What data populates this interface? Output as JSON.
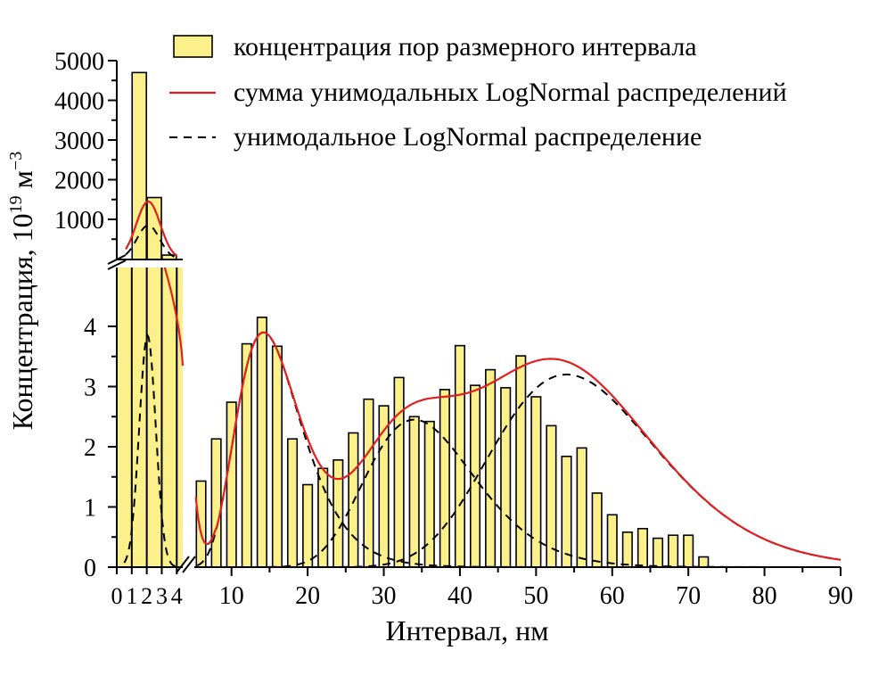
{
  "chart_data": {
    "type": "bar",
    "xlabel": "Интервал, нм",
    "ylabel": "Концентрация, 10",
    "ylabel_sup": "19",
    "ylabel_unit": " м",
    "ylabel_unit_sup": "−3",
    "legend": {
      "placement": "top",
      "entries": [
        {
          "kind": "bar",
          "label": "концентрация пор размерного интервала"
        },
        {
          "kind": "solid",
          "label": "сумма унимодальных LogNormal распределений"
        },
        {
          "kind": "dashed",
          "label": "унимодальное LogNormal распределение"
        }
      ]
    },
    "colors": {
      "bar": "#fbf08a",
      "sum": "#e02020",
      "component": "#000000"
    },
    "left_panel": {
      "x_ticks": [
        {
          "x": 0,
          "label": "0"
        },
        {
          "x": 1,
          "label": "1"
        },
        {
          "x": 2,
          "label": "2"
        },
        {
          "x": 3,
          "label": "3"
        },
        {
          "x": 4,
          "label": "4"
        }
      ],
      "upper_y_ticks": [
        {
          "v": 1000,
          "label": "1000"
        },
        {
          "v": 2000,
          "label": "2000"
        },
        {
          "v": 3000,
          "label": "3000"
        },
        {
          "v": 4000,
          "label": "4000"
        },
        {
          "v": 5000,
          "label": "5000"
        }
      ],
      "upper_ylim": [
        0,
        5000
      ],
      "bars": [
        {
          "x": 0.5,
          "value": 0
        },
        {
          "x": 1.5,
          "value": 4700
        },
        {
          "x": 2.5,
          "value": 1550
        },
        {
          "x": 3.5,
          "value": 100
        }
      ]
    },
    "main_panel": {
      "xlim": [
        5,
        90
      ],
      "ylim": [
        0,
        5
      ],
      "x_ticks": [
        {
          "x": 10,
          "label": "10"
        },
        {
          "x": 20,
          "label": "20"
        },
        {
          "x": 30,
          "label": "30"
        },
        {
          "x": 40,
          "label": "40"
        },
        {
          "x": 50,
          "label": "50"
        },
        {
          "x": 60,
          "label": "60"
        },
        {
          "x": 70,
          "label": "70"
        },
        {
          "x": 80,
          "label": "80"
        },
        {
          "x": 90,
          "label": "90"
        }
      ],
      "y_ticks": [
        {
          "v": 0,
          "label": "0"
        },
        {
          "v": 1,
          "label": "1"
        },
        {
          "v": 2,
          "label": "2"
        },
        {
          "v": 3,
          "label": "3"
        },
        {
          "v": 4,
          "label": "4"
        }
      ],
      "bars": [
        {
          "x": 6,
          "value": 1.43
        },
        {
          "x": 8,
          "value": 2.13
        },
        {
          "x": 10,
          "value": 2.74
        },
        {
          "x": 12,
          "value": 3.71
        },
        {
          "x": 14,
          "value": 4.15
        },
        {
          "x": 16,
          "value": 3.67
        },
        {
          "x": 18,
          "value": 2.13
        },
        {
          "x": 20,
          "value": 1.37
        },
        {
          "x": 22,
          "value": 1.64
        },
        {
          "x": 24,
          "value": 1.78
        },
        {
          "x": 26,
          "value": 2.23
        },
        {
          "x": 28,
          "value": 2.79
        },
        {
          "x": 30,
          "value": 2.68
        },
        {
          "x": 32,
          "value": 3.15
        },
        {
          "x": 34,
          "value": 2.5
        },
        {
          "x": 36,
          "value": 2.42
        },
        {
          "x": 38,
          "value": 2.95
        },
        {
          "x": 40,
          "value": 3.68
        },
        {
          "x": 42,
          "value": 3.02
        },
        {
          "x": 44,
          "value": 3.28
        },
        {
          "x": 46,
          "value": 2.98
        },
        {
          "x": 48,
          "value": 3.51
        },
        {
          "x": 50,
          "value": 2.83
        },
        {
          "x": 52,
          "value": 2.35
        },
        {
          "x": 54,
          "value": 1.84
        },
        {
          "x": 56,
          "value": 1.98
        },
        {
          "x": 58,
          "value": 1.23
        },
        {
          "x": 60,
          "value": 0.87
        },
        {
          "x": 62,
          "value": 0.58
        },
        {
          "x": 64,
          "value": 0.64
        },
        {
          "x": 66,
          "value": 0.48
        },
        {
          "x": 68,
          "value": 0.53
        },
        {
          "x": 70,
          "value": 0.53
        },
        {
          "x": 72,
          "value": 0.17
        }
      ]
    }
  }
}
